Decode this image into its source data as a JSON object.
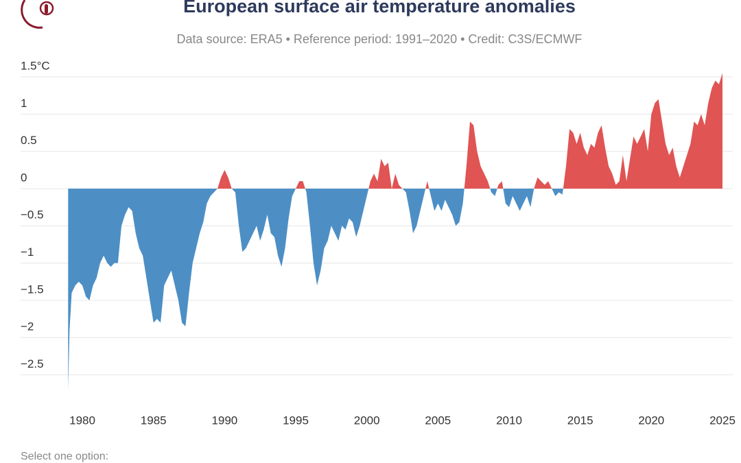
{
  "chart_data": {
    "type": "area",
    "title": "European surface air temperature anomalies",
    "subtitle": "Data source: ERA5 • Reference period: 1991–2020 • Credit: C3S/ECMWF",
    "x": [
      1979,
      1979.1,
      1979.25,
      1979.5,
      1979.75,
      1980,
      1980.25,
      1980.5,
      1980.75,
      1981,
      1981.25,
      1981.5,
      1981.75,
      1982,
      1982.25,
      1982.5,
      1982.75,
      1983,
      1983.25,
      1983.5,
      1983.75,
      1984,
      1984.25,
      1984.5,
      1984.75,
      1985,
      1985.25,
      1985.5,
      1985.75,
      1986,
      1986.25,
      1986.5,
      1986.75,
      1987,
      1987.25,
      1987.5,
      1987.75,
      1988,
      1988.25,
      1988.5,
      1988.75,
      1989,
      1989.25,
      1989.5,
      1989.75,
      1990,
      1990.25,
      1990.5,
      1990.75,
      1991,
      1991.25,
      1991.5,
      1991.75,
      1992,
      1992.25,
      1992.5,
      1992.75,
      1993,
      1993.25,
      1993.5,
      1993.75,
      1994,
      1994.25,
      1994.5,
      1994.75,
      1995,
      1995.25,
      1995.5,
      1995.75,
      1996,
      1996.25,
      1996.5,
      1996.75,
      1997,
      1997.25,
      1997.5,
      1997.75,
      1998,
      1998.25,
      1998.5,
      1998.75,
      1999,
      1999.25,
      1999.5,
      1999.75,
      2000,
      2000.25,
      2000.5,
      2000.75,
      2001,
      2001.25,
      2001.5,
      2001.75,
      2002,
      2002.25,
      2002.5,
      2002.75,
      2003,
      2003.25,
      2003.5,
      2003.75,
      2004,
      2004.25,
      2004.5,
      2004.75,
      2005,
      2005.25,
      2005.5,
      2005.75,
      2006,
      2006.25,
      2006.5,
      2006.75,
      2007,
      2007.25,
      2007.5,
      2007.75,
      2008,
      2008.25,
      2008.5,
      2008.75,
      2009,
      2009.25,
      2009.5,
      2009.75,
      2010,
      2010.25,
      2010.5,
      2010.75,
      2011,
      2011.25,
      2011.5,
      2011.75,
      2012,
      2012.25,
      2012.5,
      2012.75,
      2013,
      2013.25,
      2013.5,
      2013.75,
      2014,
      2014.25,
      2014.5,
      2014.75,
      2015,
      2015.25,
      2015.5,
      2015.75,
      2016,
      2016.25,
      2016.5,
      2016.75,
      2017,
      2017.25,
      2017.5,
      2017.75,
      2018,
      2018.25,
      2018.5,
      2018.75,
      2019,
      2019.25,
      2019.5,
      2019.75,
      2020,
      2020.25,
      2020.5,
      2020.75,
      2021,
      2021.25,
      2021.5,
      2021.75,
      2022,
      2022.25,
      2022.5,
      2022.75,
      2023,
      2023.25,
      2023.5,
      2023.75,
      2024,
      2024.25,
      2024.5,
      2024.75,
      2025
    ],
    "values": [
      -2.7,
      -1.9,
      -1.4,
      -1.3,
      -1.25,
      -1.3,
      -1.45,
      -1.5,
      -1.3,
      -1.2,
      -1.0,
      -0.9,
      -1.0,
      -1.05,
      -1.0,
      -1.0,
      -0.5,
      -0.35,
      -0.25,
      -0.3,
      -0.6,
      -0.8,
      -0.9,
      -1.2,
      -1.5,
      -1.8,
      -1.75,
      -1.8,
      -1.3,
      -1.2,
      -1.1,
      -1.3,
      -1.5,
      -1.8,
      -1.85,
      -1.4,
      -1.0,
      -0.8,
      -0.6,
      -0.45,
      -0.2,
      -0.1,
      -0.05,
      0.0,
      0.15,
      0.25,
      0.15,
      0.0,
      -0.05,
      -0.5,
      -0.85,
      -0.8,
      -0.7,
      -0.6,
      -0.5,
      -0.7,
      -0.55,
      -0.35,
      -0.6,
      -0.65,
      -0.9,
      -1.05,
      -0.8,
      -0.4,
      -0.1,
      0.0,
      0.1,
      0.1,
      -0.05,
      -0.5,
      -1.0,
      -1.3,
      -1.1,
      -0.8,
      -0.7,
      -0.5,
      -0.6,
      -0.7,
      -0.5,
      -0.55,
      -0.4,
      -0.45,
      -0.65,
      -0.5,
      -0.3,
      -0.1,
      0.1,
      0.2,
      0.1,
      0.4,
      0.3,
      0.35,
      0.0,
      0.2,
      0.05,
      0.0,
      -0.05,
      -0.3,
      -0.6,
      -0.5,
      -0.3,
      -0.1,
      0.1,
      -0.1,
      -0.3,
      -0.2,
      -0.3,
      -0.15,
      -0.25,
      -0.35,
      -0.5,
      -0.45,
      -0.2,
      0.3,
      0.9,
      0.85,
      0.5,
      0.3,
      0.2,
      0.1,
      -0.05,
      -0.1,
      0.05,
      0.1,
      -0.2,
      -0.25,
      -0.1,
      -0.2,
      -0.3,
      -0.2,
      -0.1,
      -0.25,
      0.0,
      0.15,
      0.1,
      0.05,
      0.1,
      0.0,
      -0.1,
      -0.05,
      -0.08,
      0.3,
      0.8,
      0.75,
      0.6,
      0.75,
      0.55,
      0.45,
      0.6,
      0.55,
      0.75,
      0.85,
      0.55,
      0.3,
      0.2,
      0.05,
      0.1,
      0.45,
      0.1,
      0.4,
      0.7,
      0.6,
      0.7,
      0.8,
      0.5,
      1.0,
      1.15,
      1.2,
      0.9,
      0.6,
      0.45,
      0.55,
      0.3,
      0.15,
      0.3,
      0.45,
      0.6,
      0.9,
      0.85,
      1.0,
      0.85,
      1.15,
      1.35,
      1.45,
      1.4,
      1.55
    ],
    "colors": {
      "positive": "#e05454",
      "negative": "#4d8fc5"
    },
    "xlim": [
      1979,
      2025
    ],
    "xticks": [
      1980,
      1985,
      1990,
      1995,
      2000,
      2005,
      2010,
      2015,
      2020,
      2025
    ],
    "ylim": [
      -2.75,
      1.6
    ],
    "yticks": [
      {
        "value": -2.5,
        "label": "−2.5"
      },
      {
        "value": -2,
        "label": "−2"
      },
      {
        "value": -1.5,
        "label": "−1.5"
      },
      {
        "value": -1,
        "label": "−1"
      },
      {
        "value": -0.5,
        "label": "−0.5"
      },
      0,
      0.5,
      1,
      {
        "value": 1.5,
        "label": "1.5°C"
      }
    ],
    "grid": true
  },
  "controls": {
    "label": "Select one option:"
  }
}
